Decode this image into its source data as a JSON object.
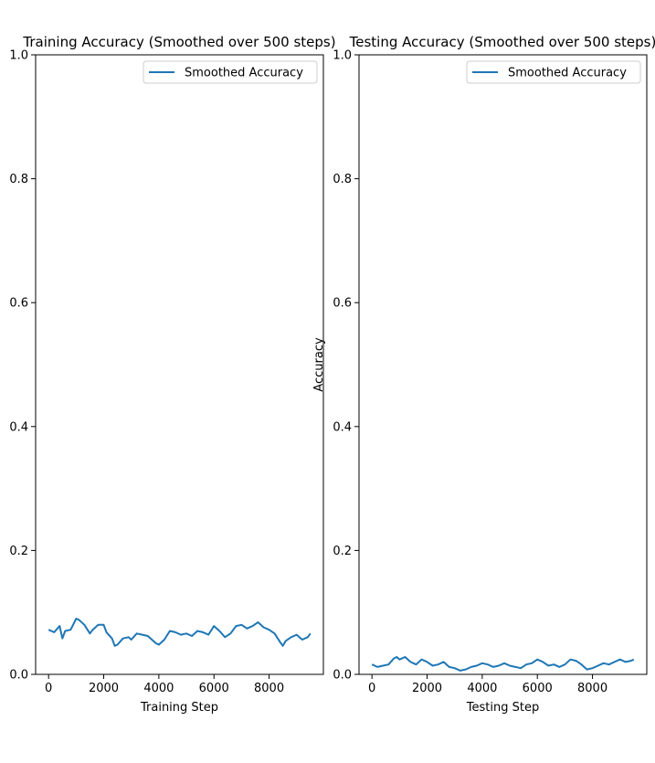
{
  "chart_data": [
    {
      "type": "line",
      "title": "Training Accuracy (Smoothed over 500 steps)",
      "xlabel": "Training Step",
      "ylabel": "",
      "xlim": [
        -470,
        9970
      ],
      "ylim": [
        0.0,
        1.0
      ],
      "xticks": [
        0,
        2000,
        4000,
        6000,
        8000
      ],
      "yticks": [
        0.0,
        0.2,
        0.4,
        0.6,
        0.8,
        1.0
      ],
      "xtick_labels": [
        "0",
        "2000",
        "4000",
        "6000",
        "8000"
      ],
      "ytick_labels": [
        "0.0",
        "0.2",
        "0.4",
        "0.6",
        "0.8",
        "1.0"
      ],
      "grid": false,
      "legend": "upper right",
      "color": "#1f77b4",
      "series": [
        {
          "name": "Smoothed Accuracy",
          "x": [
            0,
            200,
            400,
            500,
            600,
            800,
            1000,
            1100,
            1300,
            1500,
            1600,
            1800,
            2000,
            2100,
            2300,
            2400,
            2500,
            2700,
            2900,
            3000,
            3200,
            3400,
            3600,
            3800,
            3900,
            4000,
            4200,
            4400,
            4600,
            4800,
            5000,
            5200,
            5400,
            5600,
            5800,
            6000,
            6200,
            6400,
            6600,
            6800,
            7000,
            7200,
            7400,
            7600,
            7800,
            8000,
            8200,
            8400,
            8500,
            8600,
            8800,
            9000,
            9200,
            9400,
            9500
          ],
          "y": [
            0.072,
            0.068,
            0.078,
            0.058,
            0.07,
            0.072,
            0.09,
            0.088,
            0.08,
            0.066,
            0.072,
            0.08,
            0.08,
            0.068,
            0.058,
            0.046,
            0.048,
            0.058,
            0.06,
            0.056,
            0.066,
            0.064,
            0.062,
            0.054,
            0.05,
            0.048,
            0.056,
            0.07,
            0.068,
            0.064,
            0.066,
            0.062,
            0.07,
            0.068,
            0.064,
            0.078,
            0.07,
            0.06,
            0.066,
            0.078,
            0.08,
            0.074,
            0.078,
            0.084,
            0.076,
            0.072,
            0.066,
            0.052,
            0.046,
            0.054,
            0.06,
            0.064,
            0.056,
            0.06,
            0.066
          ]
        }
      ]
    },
    {
      "type": "line",
      "title": "Testing Accuracy (Smoothed over 500 steps)",
      "xlabel": "Testing Step",
      "ylabel": "Accuracy",
      "xlim": [
        -470,
        9970
      ],
      "ylim": [
        0.0,
        1.0
      ],
      "xticks": [
        0,
        2000,
        4000,
        6000,
        8000
      ],
      "yticks": [
        0.0,
        0.2,
        0.4,
        0.6,
        0.8,
        1.0
      ],
      "xtick_labels": [
        "0",
        "2000",
        "4000",
        "6000",
        "8000"
      ],
      "ytick_labels": [
        "0.0",
        "0.2",
        "0.4",
        "0.6",
        "0.8",
        "1.0"
      ],
      "grid": false,
      "legend": "upper right",
      "color": "#1f77b4",
      "series": [
        {
          "name": "Smoothed Accuracy",
          "x": [
            0,
            200,
            400,
            600,
            800,
            900,
            1000,
            1200,
            1400,
            1600,
            1800,
            2000,
            2200,
            2400,
            2600,
            2800,
            3000,
            3200,
            3400,
            3600,
            3800,
            4000,
            4200,
            4400,
            4600,
            4800,
            5000,
            5200,
            5400,
            5600,
            5800,
            6000,
            6200,
            6400,
            6600,
            6800,
            7000,
            7200,
            7400,
            7600,
            7800,
            8000,
            8200,
            8400,
            8600,
            8800,
            9000,
            9200,
            9400,
            9500
          ],
          "y": [
            0.016,
            0.012,
            0.014,
            0.016,
            0.026,
            0.028,
            0.024,
            0.028,
            0.02,
            0.016,
            0.024,
            0.02,
            0.014,
            0.016,
            0.02,
            0.012,
            0.01,
            0.006,
            0.008,
            0.012,
            0.014,
            0.018,
            0.016,
            0.012,
            0.014,
            0.018,
            0.014,
            0.012,
            0.01,
            0.016,
            0.018,
            0.024,
            0.02,
            0.014,
            0.016,
            0.012,
            0.016,
            0.024,
            0.022,
            0.016,
            0.008,
            0.01,
            0.014,
            0.018,
            0.016,
            0.02,
            0.024,
            0.02,
            0.022,
            0.024
          ]
        }
      ]
    }
  ]
}
